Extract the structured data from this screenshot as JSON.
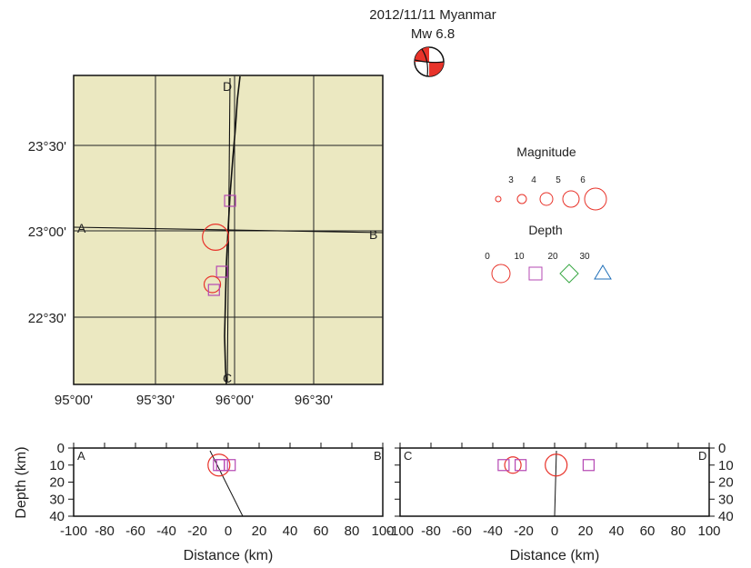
{
  "header": {
    "date_region": "2012/11/11 Myanmar",
    "magnitude_label": "Mw  6.8"
  },
  "colors": {
    "map_bg": "#ebe8c1",
    "circle": "#e8332a",
    "square": "#b548b3",
    "diamond": "#3aa845",
    "triangle": "#1f6fb8",
    "beachball_fill": "#e8332a"
  },
  "map": {
    "lon_ticks": [
      "95°00'",
      "95°30'",
      "96°00'",
      "96°30'"
    ],
    "lat_ticks": [
      "23°30'",
      "23°00'",
      "22°30'"
    ],
    "profile_labels": {
      "a": "A",
      "b": "B",
      "c": "C",
      "d": "D"
    }
  },
  "legend": {
    "magnitude_title": "Magnitude",
    "magnitude_values": [
      "3",
      "4",
      "5",
      "6"
    ],
    "depth_title": "Depth",
    "depth_values": [
      "0",
      "10",
      "20",
      "30"
    ]
  },
  "sections": {
    "left": {
      "start_label": "A",
      "end_label": "B"
    },
    "right": {
      "start_label": "C",
      "end_label": "D"
    },
    "x_ticks": [
      "-100",
      "-80",
      "-60",
      "-40",
      "-20",
      "0",
      "20",
      "40",
      "60",
      "80",
      "100"
    ],
    "y_ticks": [
      "0",
      "10",
      "20",
      "30",
      "40"
    ],
    "xlabel": "Distance (km)",
    "ylabel": "Depth (km)"
  },
  "chart_data": [
    {
      "type": "scatter",
      "title": "2012/11/11 Myanmar Mw 6.8",
      "xlim": [
        95.0,
        96.917
      ],
      "ylim": [
        22.2,
        23.9
      ],
      "events": [
        {
          "lon": 95.88,
          "lat": 23.01,
          "depth_class": 0,
          "mag": 6.8,
          "shape": "circle"
        },
        {
          "lon": 95.97,
          "lat": 23.21,
          "depth_class": 10,
          "mag": 4,
          "shape": "square"
        },
        {
          "lon": 95.92,
          "lat": 22.82,
          "depth_class": 10,
          "mag": 4,
          "shape": "square"
        },
        {
          "lon": 95.86,
          "lat": 22.75,
          "depth_class": 0,
          "mag": 5,
          "shape": "circle"
        },
        {
          "lon": 95.87,
          "lat": 22.72,
          "depth_class": 10,
          "mag": 4,
          "shape": "square"
        }
      ]
    },
    {
      "type": "scatter",
      "xlabel": "Distance (km)",
      "ylabel": "Depth (km)",
      "xlim": [
        -100,
        100
      ],
      "ylim": [
        0,
        40
      ],
      "events": [
        {
          "distance": -6,
          "depth": 10,
          "mag": 6,
          "shape": "circle"
        },
        {
          "distance": -4,
          "depth": 10,
          "mag": 4,
          "shape": "square"
        },
        {
          "distance": 1,
          "depth": 10,
          "mag": 4,
          "shape": "square"
        },
        {
          "distance": -6,
          "depth": 10,
          "mag": 4,
          "shape": "square"
        }
      ]
    },
    {
      "type": "scatter",
      "xlabel": "Distance (km)",
      "ylabel": "Depth (km)",
      "xlim": [
        -100,
        100
      ],
      "ylim": [
        0,
        40
      ],
      "events": [
        {
          "distance": 1,
          "depth": 10,
          "mag": 6,
          "shape": "circle"
        },
        {
          "distance": -27,
          "depth": 10,
          "mag": 5,
          "shape": "circle"
        },
        {
          "distance": -33,
          "depth": 10,
          "mag": 4,
          "shape": "square"
        },
        {
          "distance": -22,
          "depth": 10,
          "mag": 4,
          "shape": "square"
        },
        {
          "distance": 22,
          "depth": 10,
          "mag": 4,
          "shape": "square"
        }
      ]
    }
  ]
}
